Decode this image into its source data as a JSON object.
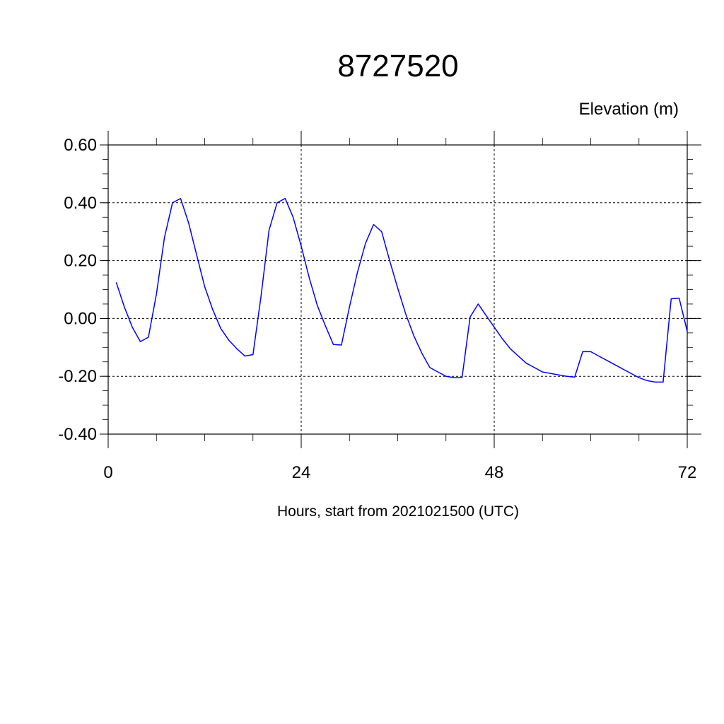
{
  "chart_data": {
    "type": "line",
    "title": "8727520",
    "ylabel": "Elevation (m)",
    "xlabel": "Hours, start from 2021021500 (UTC)",
    "xlim": [
      0,
      72
    ],
    "ylim": [
      -0.4,
      0.6
    ],
    "x_ticks": [
      0,
      24,
      48,
      72
    ],
    "x_tick_labels": [
      "0",
      "24",
      "48",
      "72"
    ],
    "y_ticks": [
      -0.4,
      -0.2,
      0.0,
      0.2,
      0.4,
      0.6
    ],
    "y_tick_labels": [
      "-0.40",
      "-0.20",
      "0.00",
      "0.20",
      "0.40",
      "0.60"
    ],
    "grid": true,
    "grid_style": "dashed",
    "series": [
      {
        "color": "#0000ff",
        "x": [
          1,
          2,
          3,
          4,
          5,
          6,
          7,
          8,
          9,
          10,
          11,
          12,
          13,
          14,
          15,
          16,
          17,
          18,
          19,
          20,
          21,
          22,
          23,
          24,
          25,
          26,
          27,
          28,
          29,
          30,
          31,
          32,
          33,
          34,
          35,
          36,
          37,
          38,
          39,
          40,
          41,
          42,
          43,
          44,
          45,
          46,
          47,
          48,
          49,
          50,
          51,
          52,
          53,
          54,
          55,
          56,
          57,
          58,
          59,
          60,
          61,
          62,
          63,
          64,
          65,
          66,
          67,
          68,
          69,
          70,
          71,
          72
        ],
        "y": [
          0.125,
          0.04,
          -0.03,
          -0.08,
          -0.065,
          0.085,
          0.28,
          0.4,
          0.415,
          0.33,
          0.22,
          0.11,
          0.03,
          -0.035,
          -0.075,
          -0.105,
          -0.13,
          -0.125,
          0.075,
          0.305,
          0.4,
          0.415,
          0.35,
          0.25,
          0.14,
          0.045,
          -0.025,
          -0.09,
          -0.092,
          0.04,
          0.16,
          0.26,
          0.325,
          0.3,
          0.2,
          0.105,
          0.015,
          -0.06,
          -0.12,
          -0.17,
          -0.185,
          -0.2,
          -0.205,
          -0.205,
          0.005,
          0.05,
          0.01,
          -0.03,
          -0.07,
          -0.105,
          -0.13,
          -0.155,
          -0.17,
          -0.185,
          -0.19,
          -0.195,
          -0.2,
          -0.203,
          -0.115,
          -0.115,
          -0.13,
          -0.145,
          -0.16,
          -0.175,
          -0.19,
          -0.205,
          -0.215,
          -0.22,
          -0.22,
          0.068,
          0.07,
          -0.045
        ]
      }
    ]
  }
}
